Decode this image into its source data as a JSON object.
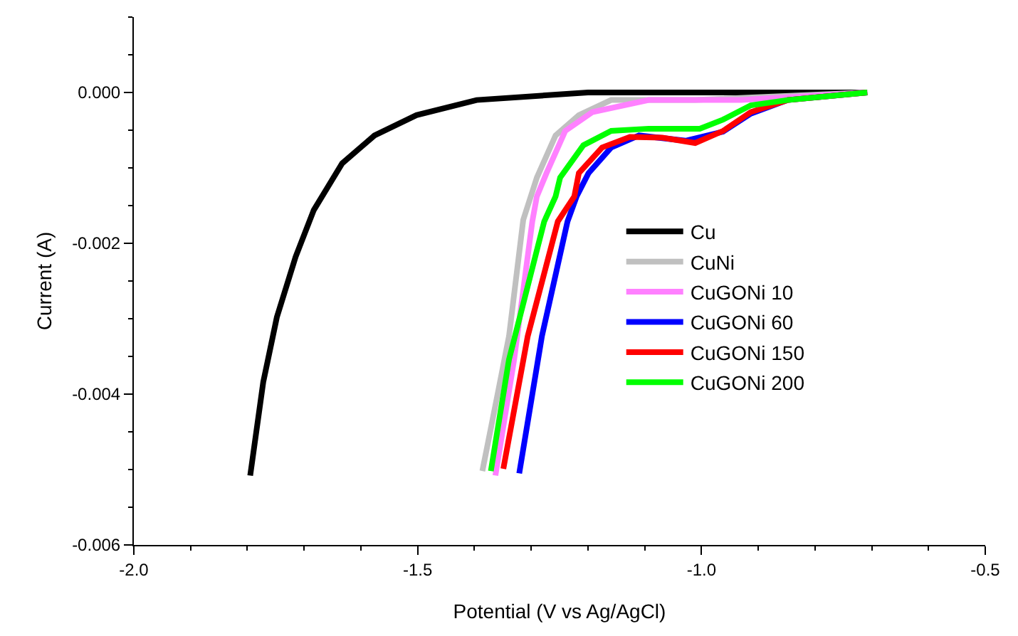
{
  "chart_data": {
    "type": "line",
    "xlabel": "Potential (V vs Ag/AgCl)",
    "ylabel": "Current (A)",
    "xlim": [
      -2.0,
      -0.5
    ],
    "xticks": [
      {
        "value": -2.0,
        "label": "-2.0"
      },
      {
        "value": -1.5,
        "label": "-1.5"
      },
      {
        "value": -1.0,
        "label": "-1.0"
      },
      {
        "value": -0.5,
        "label": "-0.5"
      }
    ],
    "ylim": [
      -0.006,
      0.001
    ],
    "yticks": [
      {
        "value": -0.006,
        "label": "-0.006"
      },
      {
        "value": -0.004,
        "label": "-0.004"
      },
      {
        "value": -0.002,
        "label": "-0.002"
      },
      {
        "value": 0,
        "label": "0.000"
      }
    ],
    "legend": "right",
    "marker": "none",
    "line_style": "solid",
    "series": [
      {
        "name": "Cu",
        "color": "#000000",
        "x": [
          -1.795,
          -1.772,
          -1.748,
          -1.715,
          -1.683,
          -1.633,
          -1.576,
          -1.502,
          -1.396,
          -1.2,
          -1.0,
          -0.708
        ],
        "values": [
          -0.00508,
          -0.00384,
          -0.00298,
          -0.00218,
          -0.00156,
          -0.00094,
          -0.00057,
          -0.0003,
          -0.0001,
          0,
          0,
          0
        ]
      },
      {
        "name": "CuNi",
        "color": "#c0c0c0",
        "x": [
          -1.386,
          -1.363,
          -1.339,
          -1.314,
          -1.29,
          -1.257,
          -1.216,
          -1.159,
          -1.011,
          -0.708
        ],
        "values": [
          -0.00502,
          -0.00415,
          -0.00323,
          -0.00169,
          -0.00113,
          -0.00057,
          -0.0003,
          -0.0001,
          -0.0001,
          0
        ]
      },
      {
        "name": "CuGONi 10",
        "color": "#ff80ff",
        "x": [
          -1.363,
          -1.33,
          -1.298,
          -1.29,
          -1.273,
          -1.24,
          -1.192,
          -1.093,
          -0.93,
          -0.708
        ],
        "values": [
          -0.00508,
          -0.00354,
          -0.00171,
          -0.00138,
          -0.00107,
          -0.00051,
          -0.00026,
          -0.0001,
          -0.0001,
          0
        ]
      },
      {
        "name": "CuGONi 60",
        "color": "#0000ff",
        "x": [
          -1.321,
          -1.281,
          -1.236,
          -1.22,
          -1.199,
          -1.159,
          -1.11,
          -1.028,
          -0.962,
          -0.913,
          -0.848,
          -0.708
        ],
        "values": [
          -0.00505,
          -0.00323,
          -0.00171,
          -0.00138,
          -0.00107,
          -0.00073,
          -0.00057,
          -0.00064,
          -0.00052,
          -0.00028,
          -0.0001,
          0
        ]
      },
      {
        "name": "CuGONi 150",
        "color": "#ff0000",
        "x": [
          -1.349,
          -1.306,
          -1.253,
          -1.224,
          -1.216,
          -1.175,
          -1.126,
          -1.069,
          -1.011,
          -0.962,
          -0.913,
          -0.848,
          -0.708
        ],
        "values": [
          -0.00499,
          -0.00323,
          -0.00171,
          -0.00138,
          -0.00107,
          -0.00073,
          -0.00059,
          -0.0006,
          -0.00067,
          -0.00051,
          -0.00026,
          -0.0001,
          0
        ]
      },
      {
        "name": "CuGONi 200",
        "color": "#00ff00",
        "x": [
          -1.371,
          -1.339,
          -1.277,
          -1.257,
          -1.249,
          -1.208,
          -1.159,
          -1.093,
          -1.003,
          -0.962,
          -0.913,
          -0.848,
          -0.708
        ],
        "values": [
          -0.00502,
          -0.00354,
          -0.00171,
          -0.00138,
          -0.00113,
          -0.0007,
          -0.00051,
          -0.00048,
          -0.00048,
          -0.00036,
          -0.00017,
          -0.0001,
          0
        ]
      }
    ]
  }
}
